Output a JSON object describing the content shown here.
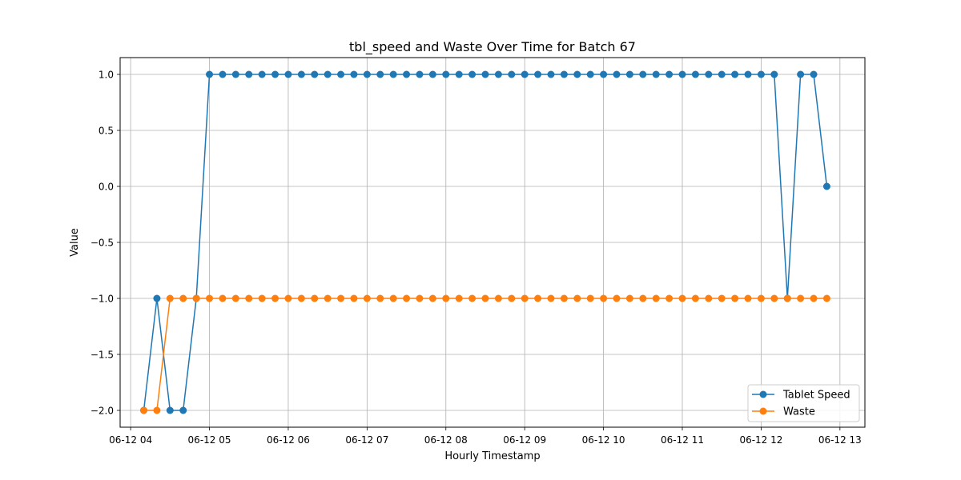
{
  "chart_data": {
    "type": "line",
    "title": "tbl_speed and Waste Over Time for Batch 67",
    "xlabel": "Hourly Timestamp",
    "ylabel": "Value",
    "x_start": "06-12 04:10",
    "x_step_minutes": 10,
    "xlim": [
      "06-12 03:52",
      "06-12 13:19"
    ],
    "ylim": [
      -2.15,
      1.15
    ],
    "x_ticks": [
      "06-12 04",
      "06-12 05",
      "06-12 06",
      "06-12 07",
      "06-12 08",
      "06-12 09",
      "06-12 10",
      "06-12 11",
      "06-12 12",
      "06-12 13"
    ],
    "y_ticks": [
      "1.0",
      "0.5",
      "0.0",
      "−0.5",
      "−1.0",
      "−1.5",
      "−2.0"
    ],
    "y_tick_values": [
      1.0,
      0.5,
      0.0,
      -0.5,
      -1.0,
      -1.5,
      -2.0
    ],
    "grid": true,
    "legend_position": "bottom-right",
    "series": [
      {
        "name": "Tablet Speed",
        "color": "#1f77b4",
        "values": [
          -2,
          -1,
          -2,
          -2,
          -1,
          1,
          1,
          1,
          1,
          1,
          1,
          1,
          1,
          1,
          1,
          1,
          1,
          1,
          1,
          1,
          1,
          1,
          1,
          1,
          1,
          1,
          1,
          1,
          1,
          1,
          1,
          1,
          1,
          1,
          1,
          1,
          1,
          1,
          1,
          1,
          1,
          1,
          1,
          1,
          1,
          1,
          1,
          1,
          1,
          -1,
          1,
          1,
          0
        ]
      },
      {
        "name": "Waste",
        "color": "#ff7f0e",
        "values": [
          -2,
          -2,
          -1,
          -1,
          -1,
          -1,
          -1,
          -1,
          -1,
          -1,
          -1,
          -1,
          -1,
          -1,
          -1,
          -1,
          -1,
          -1,
          -1,
          -1,
          -1,
          -1,
          -1,
          -1,
          -1,
          -1,
          -1,
          -1,
          -1,
          -1,
          -1,
          -1,
          -1,
          -1,
          -1,
          -1,
          -1,
          -1,
          -1,
          -1,
          -1,
          -1,
          -1,
          -1,
          -1,
          -1,
          -1,
          -1,
          -1,
          -1,
          -1,
          -1,
          -1
        ]
      }
    ]
  }
}
